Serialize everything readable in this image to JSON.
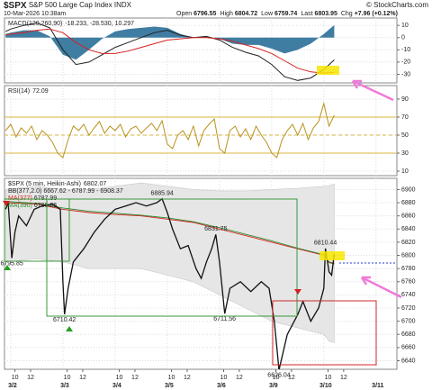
{
  "header": {
    "symbol": "$SPX",
    "name": "S&P 500 Large Cap Index",
    "exchange": "INDX",
    "copyright": "© StockCharts.com",
    "date": "10-Mar-2026 10:38am",
    "quote": [
      {
        "label": "Open",
        "value": "6796.55"
      },
      {
        "label": "High",
        "value": "6804.72"
      },
      {
        "label": "Low",
        "value": "6759.74"
      },
      {
        "label": "Last",
        "value": "6803.95"
      },
      {
        "label": "Chg",
        "value": "+7.96 (+0.12%)"
      }
    ]
  },
  "chart_data": [
    {
      "type": "line",
      "title": "MACD(120,260,90)",
      "readout": "-18.233, -28.530, 10.297",
      "xlim": [
        -0.12,
        7.4
      ],
      "ylim": [
        -37,
        16
      ],
      "yticks": [
        10,
        0,
        -10,
        -20,
        -30
      ],
      "grid": true,
      "x": [
        -0.1,
        0,
        0.25,
        0.5,
        0.75,
        1,
        1.25,
        1.5,
        1.75,
        2,
        2.25,
        2.5,
        2.75,
        3,
        3.25,
        3.5,
        3.75,
        4,
        4.25,
        4.5,
        4.75,
        5,
        5.25,
        5.5,
        5.75,
        6,
        6.2
      ],
      "series": [
        {
          "kind": "line",
          "color": "#222222",
          "values": [
            5,
            7,
            10,
            12,
            8,
            -10,
            -22,
            -20,
            -14,
            -8,
            -4,
            0,
            4,
            6,
            2,
            0,
            1,
            -2,
            -8,
            -12,
            -15,
            -22,
            -32,
            -35,
            -33,
            -26,
            -18.233
          ]
        },
        {
          "kind": "line",
          "color": "#d62020",
          "values": [
            2,
            3,
            4,
            6,
            7,
            4,
            -4,
            -10,
            -13,
            -13,
            -11,
            -8,
            -5,
            -2,
            -1,
            0,
            0,
            -1,
            -3,
            -6,
            -9,
            -13,
            -19,
            -25,
            -28,
            -29,
            -28.53
          ]
        },
        {
          "kind": "histogram",
          "color": "#2b6f98",
          "values": [
            3,
            4,
            6,
            6,
            1,
            -14,
            -18,
            -10,
            -1,
            5,
            7,
            8,
            9,
            8,
            3,
            0,
            1,
            -1,
            -5,
            -6,
            -6,
            -9,
            -13,
            -10,
            -5,
            3,
            10.297
          ]
        }
      ]
    },
    {
      "type": "line",
      "title": "RSI(14)",
      "readout": "72.09",
      "xlim": [
        -0.12,
        7.4
      ],
      "ylim": [
        5,
        105
      ],
      "yticks": [
        90,
        70,
        50,
        30,
        10
      ],
      "levels": [
        70,
        50,
        30
      ],
      "level_color": "#d8b640",
      "grid": true,
      "x": [
        -0.1,
        0,
        0.1,
        0.2,
        0.3,
        0.4,
        0.5,
        0.6,
        0.7,
        0.8,
        0.9,
        1,
        1.1,
        1.2,
        1.3,
        1.4,
        1.5,
        1.6,
        1.7,
        1.8,
        1.9,
        2,
        2.1,
        2.2,
        2.3,
        2.4,
        2.5,
        2.6,
        2.7,
        2.8,
        2.9,
        3,
        3.1,
        3.2,
        3.3,
        3.4,
        3.5,
        3.6,
        3.7,
        3.8,
        3.9,
        4,
        4.1,
        4.2,
        4.3,
        4.4,
        4.5,
        4.6,
        4.7,
        4.8,
        4.9,
        5,
        5.1,
        5.2,
        5.3,
        5.4,
        5.5,
        5.6,
        5.7,
        5.8,
        5.9,
        6,
        6.1,
        6.2
      ],
      "series": [
        {
          "kind": "line",
          "color": "#b8921e",
          "values": [
            55,
            62,
            48,
            58,
            52,
            60,
            45,
            55,
            50,
            42,
            30,
            25,
            45,
            60,
            55,
            62,
            50,
            58,
            65,
            52,
            60,
            55,
            62,
            48,
            57,
            60,
            52,
            58,
            63,
            55,
            66,
            40,
            35,
            50,
            55,
            45,
            60,
            38,
            55,
            62,
            68,
            35,
            30,
            55,
            60,
            48,
            57,
            45,
            60,
            50,
            42,
            30,
            25,
            45,
            55,
            62,
            50,
            63,
            45,
            58,
            65,
            85,
            60,
            72.09
          ]
        }
      ]
    },
    {
      "type": "line",
      "title": "$SPX (5 min, Heikin-Ashi)",
      "readout": "6802.07",
      "xlim": [
        -0.12,
        7.4
      ],
      "ylim": [
        6627,
        6917
      ],
      "grid": true,
      "yticks": [
        6900,
        6880,
        6860,
        6840,
        6820,
        6800,
        6780,
        6760,
        6740,
        6720,
        6700,
        6680,
        6660,
        6640
      ],
      "xticks": [
        {
          "value": 0.08,
          "label": "10"
        },
        {
          "value": 0.38,
          "label": "12"
        },
        {
          "value": 1.08,
          "label": "10"
        },
        {
          "value": 1.38,
          "label": "12"
        },
        {
          "value": 2.08,
          "label": "10"
        },
        {
          "value": 2.38,
          "label": "12"
        },
        {
          "value": 3.08,
          "label": "10"
        },
        {
          "value": 3.38,
          "label": "12"
        },
        {
          "value": 4.08,
          "label": "10"
        },
        {
          "value": 4.38,
          "label": "12"
        },
        {
          "value": 5.08,
          "label": "10"
        },
        {
          "value": 5.38,
          "label": "12"
        },
        {
          "value": 6.08,
          "label": "10"
        },
        {
          "value": 6.38,
          "label": "12"
        }
      ],
      "date_ticks": [
        {
          "value": 0,
          "label": "3/2"
        },
        {
          "value": 1,
          "label": "3/3"
        },
        {
          "value": 2,
          "label": "3/4"
        },
        {
          "value": 3,
          "label": "3/5"
        },
        {
          "value": 4,
          "label": "3/6"
        },
        {
          "value": 5,
          "label": "3/9"
        },
        {
          "value": 6,
          "label": "3/10"
        },
        {
          "value": 7,
          "label": "3/11"
        }
      ],
      "x": [
        -0.1,
        -0.05,
        0.02,
        0.08,
        0.15,
        0.3,
        0.45,
        0.6,
        0.8,
        0.95,
        1.0,
        1.03,
        1.1,
        1.2,
        1.4,
        1.6,
        1.8,
        2.0,
        2.2,
        2.4,
        2.6,
        2.8,
        2.9,
        3.0,
        3.1,
        3.25,
        3.4,
        3.55,
        3.65,
        3.75,
        3.85,
        3.93,
        4.0,
        4.1,
        4.2,
        4.4,
        4.6,
        4.8,
        4.95,
        5.05,
        5.14,
        5.3,
        5.5,
        5.6,
        5.75,
        5.9,
        6.0,
        6.03,
        6.1,
        6.15,
        6.2
      ],
      "series": [
        {
          "kind": "line",
          "color": "#111111",
          "values": [
            6870,
            6880,
            6795.85,
            6835,
            6860,
            6845,
            6870,
            6875,
            6878,
            6870,
            6760,
            6710.42,
            6750,
            6790,
            6810,
            6835,
            6855,
            6870,
            6875,
            6880,
            6875,
            6880,
            6885.94,
            6865,
            6840,
            6810,
            6815,
            6780,
            6765,
            6790,
            6810,
            6831.75,
            6790,
            6711.56,
            6750,
            6760,
            6745,
            6760,
            6750,
            6700,
            6626.04,
            6680,
            6710,
            6730,
            6700,
            6720,
            6750,
            6810.44,
            6775,
            6770,
            6802.07
          ]
        }
      ],
      "ma_x": [
        -0.1,
        0.5,
        1,
        1.5,
        2,
        2.5,
        3,
        3.5,
        4,
        4.5,
        5,
        5.5,
        6,
        6.1,
        6.2
      ],
      "ma": [
        {
          "name": "MA(377)",
          "readout": "6787.99",
          "color": "#d62020",
          "values": [
            6880,
            6878,
            6870,
            6865,
            6862,
            6860,
            6855,
            6850,
            6840,
            6830,
            6820,
            6810,
            6800,
            6790,
            6787.99
          ]
        },
        {
          "name": "MA(390)",
          "readout": "6786.86",
          "color": "#2a8a2a",
          "values": [
            6882,
            6879,
            6872,
            6867,
            6864,
            6861,
            6857,
            6851,
            6842,
            6832,
            6822,
            6811,
            6801,
            6789,
            6786.86
          ]
        }
      ],
      "band": {
        "label": "BB(377,2.0)",
        "readout": "6667.62 - 6787.99 - 6908.37",
        "color": "#e6e6e6",
        "upper": [
          6900,
          6905,
          6900,
          6900,
          6905,
          6910,
          6905,
          6900,
          6898,
          6898,
          6900,
          6902,
          6905,
          6906,
          6908.37
        ],
        "lower": [
          6790,
          6795,
          6790,
          6780,
          6780,
          6780,
          6770,
          6760,
          6740,
          6720,
          6700,
          6690,
          6680,
          6670,
          6667.62
        ]
      },
      "points": [
        {
          "x": 2.9,
          "value": 6885.94,
          "position": "above"
        },
        {
          "x": 3.93,
          "value": 6831.75,
          "position": "above"
        },
        {
          "x": 6.03,
          "value": 6810.44,
          "position": "above"
        },
        {
          "x": 0.02,
          "value": 6795.85,
          "position": "below"
        },
        {
          "x": 1.03,
          "value": 6710.42,
          "position": "below"
        },
        {
          "x": 4.1,
          "value": 6711.56,
          "position": "below"
        },
        {
          "x": 5.14,
          "value": 6626.04,
          "position": "below"
        }
      ]
    }
  ]
}
